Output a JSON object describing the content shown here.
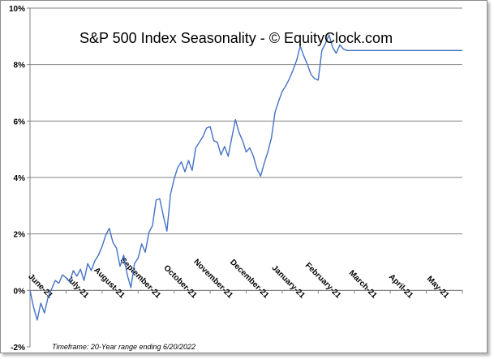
{
  "chart_data": {
    "type": "line",
    "title": "S&P 500 Index Seasonality - © EquityClock.com",
    "footnote": "Timeframe: 20-Year range ending 6/20/2022",
    "ylim": [
      -2,
      10
    ],
    "y_ticks": [
      -2,
      0,
      2,
      4,
      6,
      8,
      10
    ],
    "y_tick_labels": [
      "-2%",
      "0%",
      "2%",
      "4%",
      "6%",
      "8%",
      "10%"
    ],
    "gridlines": "horizontal",
    "x_tick_labels": [
      "June-21",
      "July-21",
      "August-21",
      "September-21",
      "October-21",
      "November-21",
      "December-21",
      "January-21",
      "February-21",
      "March-21",
      "April-21",
      "May-21"
    ],
    "series": [
      {
        "name": "S&P 500 Index Seasonality",
        "color": "#4472c4",
        "x": [
          0,
          0.1,
          0.2,
          0.3,
          0.4,
          0.5,
          0.6,
          0.7,
          0.8,
          0.9,
          1.0,
          1.1,
          1.2,
          1.3,
          1.4,
          1.5,
          1.6,
          1.7,
          1.8,
          1.9,
          2.0,
          2.1,
          2.2,
          2.3,
          2.4,
          2.5,
          2.6,
          2.7,
          2.8,
          2.9,
          3.0,
          3.1,
          3.2,
          3.3,
          3.4,
          3.5,
          3.6,
          3.7,
          3.8,
          3.9,
          4.0,
          4.1,
          4.2,
          4.3,
          4.4,
          4.5,
          4.6,
          4.7,
          4.8,
          4.9,
          5.0,
          5.1,
          5.2,
          5.3,
          5.4,
          5.5,
          5.6,
          5.7,
          5.8,
          5.9,
          6.0,
          6.1,
          6.2,
          6.3,
          6.4,
          6.5,
          6.6,
          6.7,
          6.8,
          6.9,
          7.0,
          7.1,
          7.2,
          7.3,
          7.4,
          7.5,
          7.6,
          7.7,
          7.8,
          7.9,
          8.0,
          8.1,
          8.2,
          8.3,
          8.4,
          8.5,
          8.6,
          8.7,
          8.8,
          8.9,
          9.0,
          9.1,
          9.2,
          9.3,
          9.4,
          9.5,
          9.6,
          9.7,
          9.8,
          9.9,
          10.0,
          10.1,
          10.2,
          10.3,
          10.4,
          10.5,
          10.6,
          10.7,
          10.8,
          10.9,
          11.0,
          11.1,
          11.2,
          11.3,
          11.4,
          11.5,
          11.6,
          11.7,
          11.8,
          11.9,
          12.0
        ],
        "values": [
          0.0,
          -0.6,
          -1.05,
          -0.45,
          -0.8,
          -0.25,
          0.05,
          0.35,
          0.25,
          0.55,
          0.45,
          0.3,
          0.7,
          0.5,
          0.75,
          0.35,
          0.95,
          0.7,
          1.05,
          1.25,
          1.55,
          1.95,
          2.2,
          1.7,
          1.5,
          0.85,
          1.25,
          0.55,
          0.1,
          0.95,
          1.15,
          1.65,
          1.35,
          2.05,
          2.3,
          3.2,
          3.25,
          2.65,
          2.1,
          3.4,
          3.95,
          4.35,
          4.55,
          4.2,
          4.6,
          4.25,
          5.05,
          5.25,
          5.45,
          5.75,
          5.8,
          5.3,
          5.25,
          4.8,
          5.1,
          4.75,
          5.4,
          6.05,
          5.6,
          5.3,
          4.9,
          5.05,
          4.75,
          4.3,
          4.05,
          4.5,
          4.9,
          5.4,
          6.3,
          6.7,
          7.05,
          7.25,
          7.5,
          7.8,
          8.15,
          8.65,
          8.3,
          8.0,
          7.65,
          7.5,
          7.45,
          8.5,
          8.75,
          9.05,
          8.6,
          8.4,
          8.7,
          8.55,
          8.5,
          8.5,
          8.5,
          8.5,
          8.5,
          8.5,
          8.5,
          8.5,
          8.5,
          8.5,
          8.5,
          8.5,
          8.5,
          8.5,
          8.5,
          8.5,
          8.5,
          8.5,
          8.5,
          8.5,
          8.5,
          8.5,
          8.5,
          8.5,
          8.5,
          8.5,
          8.5,
          8.5,
          8.5,
          8.5,
          8.5,
          8.5,
          8.5
        ]
      }
    ]
  }
}
